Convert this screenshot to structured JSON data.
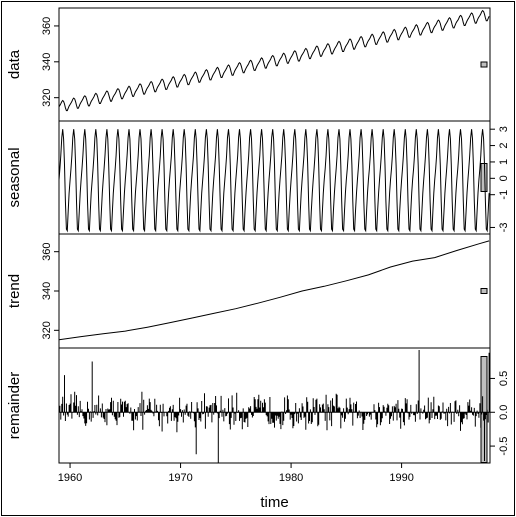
{
  "chart_data": {
    "type": "line",
    "figure": "stl-decomposition",
    "xlabel": "time",
    "x_range": [
      1959.0,
      1998.0
    ],
    "x_ticks": [
      1960,
      1970,
      1980,
      1990
    ],
    "grid": false,
    "panels": [
      {
        "name": "data",
        "ylabel": "data",
        "tick_side": "left",
        "ylim": [
          307,
          370
        ],
        "y_ticks": [
          320,
          340,
          360
        ],
        "start_year": 1959,
        "end_year": 1997.917,
        "trend_start": 315.0,
        "trend_end": 366.3,
        "seasonal_amplitude": 3.0,
        "annual_values": [
          {
            "year": 1960,
            "value": 316.9
          },
          {
            "year": 1970,
            "value": 325.7
          },
          {
            "year": 1980,
            "value": 338.7
          },
          {
            "year": 1990,
            "value": 354.2
          },
          {
            "year": 1997,
            "value": 363.7
          }
        ]
      },
      {
        "name": "seasonal",
        "ylabel": "seasonal",
        "tick_side": "right",
        "ylim": [
          -3.4,
          3.5
        ],
        "y_ticks": [
          -3,
          -1,
          0,
          1,
          2,
          3
        ],
        "period": 12,
        "monthly_component": [
          -0.1,
          0.6,
          1.4,
          2.5,
          3.0,
          2.4,
          0.8,
          -1.4,
          -3.1,
          -3.2,
          -2.0,
          -0.9
        ]
      },
      {
        "name": "trend",
        "ylabel": "trend",
        "tick_side": "left",
        "ylim": [
          311,
          369
        ],
        "y_ticks": [
          320,
          340,
          360
        ],
        "values": [
          {
            "x": 1959.0,
            "y": 315.2
          },
          {
            "x": 1961.0,
            "y": 316.8
          },
          {
            "x": 1963.0,
            "y": 318.3
          },
          {
            "x": 1965.0,
            "y": 319.6
          },
          {
            "x": 1967.0,
            "y": 321.6
          },
          {
            "x": 1969.0,
            "y": 323.8
          },
          {
            "x": 1971.0,
            "y": 326.2
          },
          {
            "x": 1973.0,
            "y": 328.6
          },
          {
            "x": 1975.0,
            "y": 331.0
          },
          {
            "x": 1977.0,
            "y": 333.8
          },
          {
            "x": 1979.0,
            "y": 336.8
          },
          {
            "x": 1981.0,
            "y": 340.0
          },
          {
            "x": 1983.0,
            "y": 342.4
          },
          {
            "x": 1985.0,
            "y": 345.2
          },
          {
            "x": 1987.0,
            "y": 348.2
          },
          {
            "x": 1989.0,
            "y": 352.2
          },
          {
            "x": 1991.0,
            "y": 355.2
          },
          {
            "x": 1993.0,
            "y": 357.0
          },
          {
            "x": 1995.0,
            "y": 360.6
          },
          {
            "x": 1997.0,
            "y": 364.0
          },
          {
            "x": 1997.917,
            "y": 365.5
          }
        ]
      },
      {
        "name": "remainder",
        "ylabel": "remainder",
        "tick_side": "right",
        "ylim": [
          -0.75,
          0.95
        ],
        "y_ticks": [
          -0.5,
          0.0,
          0.5
        ],
        "baseline": 0,
        "display": "vertical-bars",
        "notable_values": [
          {
            "x": 1959.5,
            "y": 0.55
          },
          {
            "x": 1962.0,
            "y": 0.75
          },
          {
            "x": 1971.4,
            "y": -0.62
          },
          {
            "x": 1973.4,
            "y": -0.75
          },
          {
            "x": 1991.6,
            "y": 0.92
          },
          {
            "x": 1997.5,
            "y": -0.72
          },
          {
            "x": 1997.9,
            "y": 0.88
          }
        ],
        "typical_abs": 0.25
      }
    ]
  }
}
